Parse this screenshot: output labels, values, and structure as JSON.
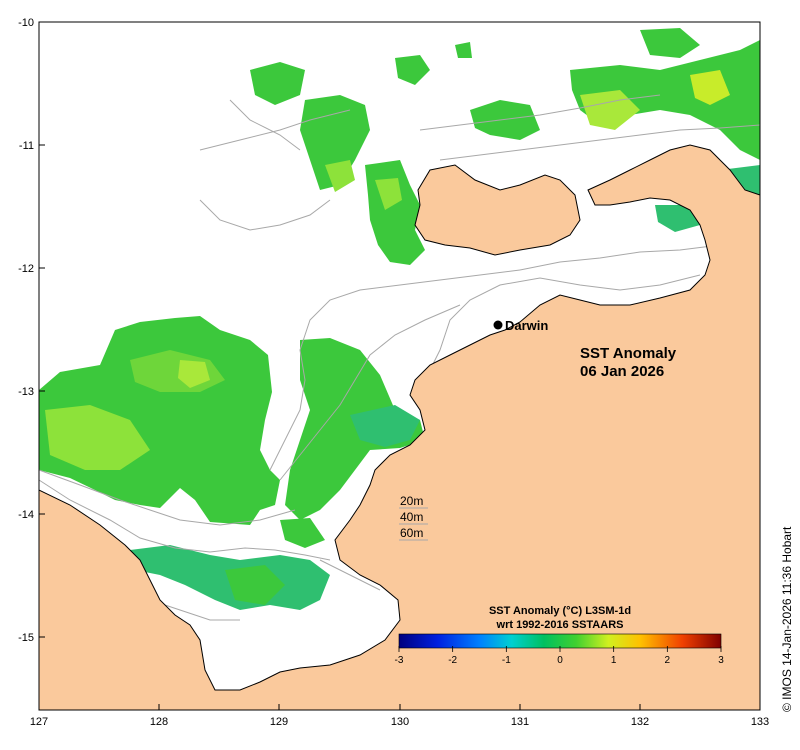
{
  "title": {
    "line1": "SST Anomaly",
    "line2": "06 Jan 2026"
  },
  "city": {
    "name": "Darwin",
    "lon": 130.84,
    "lat": -12.46
  },
  "axes": {
    "lon_range": [
      127,
      133
    ],
    "lat_range": [
      -15.6,
      -10
    ],
    "lon_ticks": [
      "127",
      "128",
      "129",
      "130",
      "131",
      "132",
      "133"
    ],
    "lat_ticks": [
      "-10",
      "-11",
      "-12",
      "-13",
      "-14",
      "-15"
    ]
  },
  "depth_legend": [
    "20m",
    "40m",
    "60m"
  ],
  "colorbar": {
    "title1": "SST Anomaly (°C) L3SM-1d",
    "title2": "wrt 1992-2016 SSTAARS",
    "ticks": [
      "-3",
      "-2",
      "-1",
      "0",
      "1",
      "2",
      "3"
    ],
    "range": [
      -3,
      3
    ]
  },
  "credit": "© IMOS 14-Jan-2026 11:36 Hobart",
  "colors": {
    "land": "#fac99c",
    "coast": "#000000",
    "bathymetry": "#a8a8a8",
    "anomaly_main": "#3cc83c"
  }
}
